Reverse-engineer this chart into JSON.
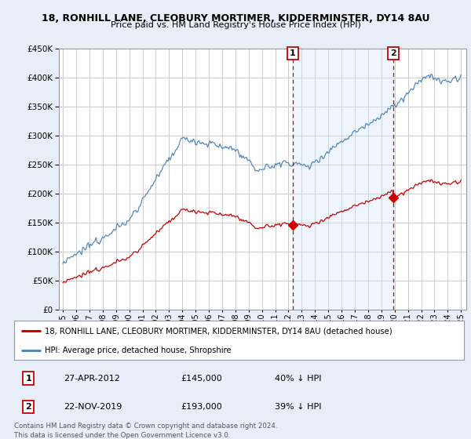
{
  "title1": "18, RONHILL LANE, CLEOBURY MORTIMER, KIDDERMINSTER, DY14 8AU",
  "title2": "Price paid vs. HM Land Registry's House Price Index (HPI)",
  "ylim": [
    0,
    450000
  ],
  "yticks": [
    0,
    50000,
    100000,
    150000,
    200000,
    250000,
    300000,
    350000,
    400000,
    450000
  ],
  "legend_line1": "18, RONHILL LANE, CLEOBURY MORTIMER, KIDDERMINSTER, DY14 8AU (detached house)",
  "legend_line2": "HPI: Average price, detached house, Shropshire",
  "line1_color": "#cc0000",
  "line2_color": "#5588bb",
  "shade_color": "#d0e4f7",
  "background_color": "#e8eef8",
  "plot_bg": "#ffffff",
  "annotation1_date": "27-APR-2012",
  "annotation1_price": "£145,000",
  "annotation1_hpi": "40% ↓ HPI",
  "annotation2_date": "22-NOV-2019",
  "annotation2_price": "£193,000",
  "annotation2_hpi": "39% ↓ HPI",
  "footer1": "Contains HM Land Registry data © Crown copyright and database right 2024.",
  "footer2": "This data is licensed under the Open Government Licence v3.0.",
  "sale1_year_approx": 2012.32,
  "sale1_price": 145000,
  "sale2_year_approx": 2019.89,
  "sale2_price": 193000
}
